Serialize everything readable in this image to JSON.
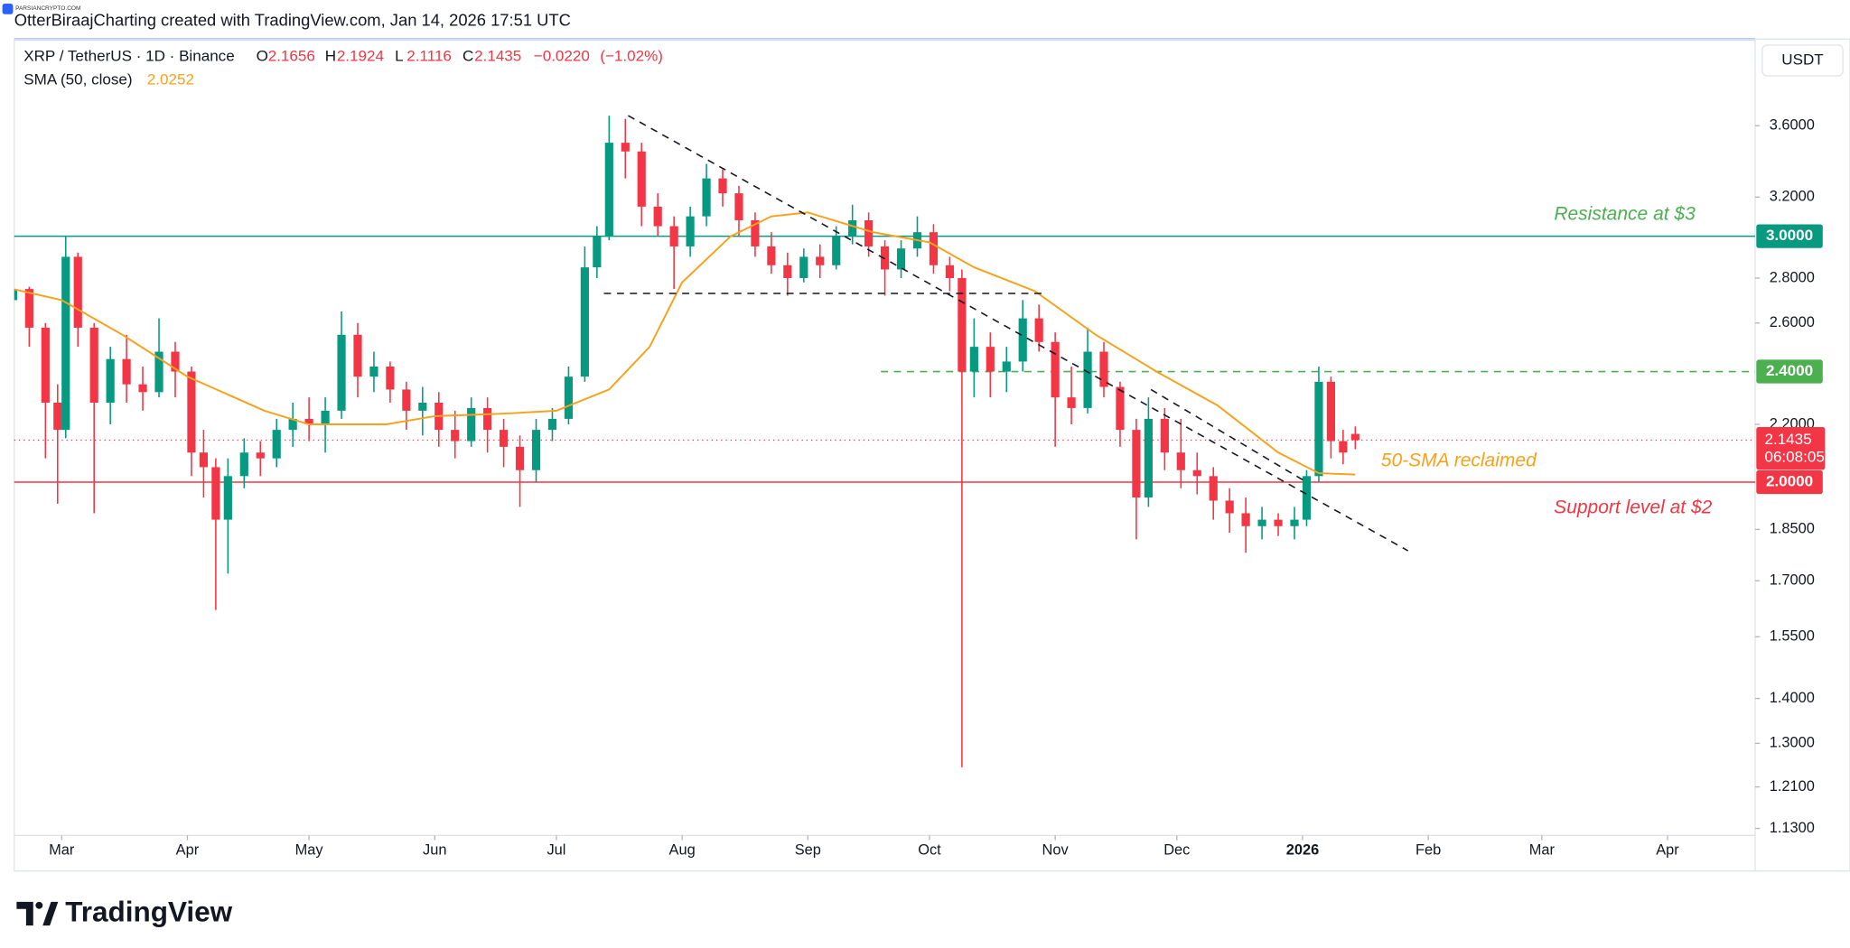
{
  "chart_data": {
    "type": "candlestick",
    "watermark": "PARSIANCRYPTO.COM",
    "caption": "OtterBiraajCharting created with TradingView.com, Jan 14, 2026 17:51 UTC",
    "title": "XRP / TetherUS · 1D · Binance",
    "legend_letters": [
      "O",
      "H",
      "L",
      "C"
    ],
    "change": {
      "value": -0.022,
      "label": "−0.0220"
    },
    "change_pct": {
      "value": -1.02,
      "label": "(−1.02%)"
    },
    "currency": "USDT",
    "countdown": "06:08:05",
    "brand": "TradingView",
    "log_scale": true,
    "grid": false,
    "up_color": "#089981",
    "down_color": "#f23645",
    "x": [
      -12,
      -8,
      -4,
      -1,
      1,
      4,
      8,
      12,
      16,
      20,
      24,
      28,
      32,
      35,
      38,
      41,
      45,
      49,
      53,
      57,
      61,
      65,
      69,
      73,
      77,
      81,
      85,
      89,
      93,
      97,
      101,
      105,
      109,
      113,
      117,
      121,
      125,
      129,
      132,
      135,
      139,
      143,
      147,
      151,
      155,
      159,
      163,
      167,
      171,
      175,
      179,
      183,
      187,
      191,
      195,
      199,
      203,
      207,
      211,
      215,
      219,
      222,
      225,
      229,
      233,
      237,
      241,
      245,
      249,
      253,
      257,
      261,
      265,
      268,
      272,
      276,
      280,
      284,
      288,
      292,
      296,
      300,
      304,
      307,
      310,
      313,
      316,
      319
    ],
    "open": [
      2.7,
      2.75,
      2.58,
      2.28,
      2.18,
      2.9,
      2.58,
      2.28,
      2.45,
      2.35,
      2.32,
      2.48,
      2.4,
      2.1,
      2.05,
      1.88,
      2.02,
      2.1,
      2.08,
      2.18,
      2.22,
      2.2,
      2.25,
      2.55,
      2.38,
      2.42,
      2.33,
      2.25,
      2.28,
      2.18,
      2.14,
      2.26,
      2.18,
      2.12,
      2.04,
      2.18,
      2.22,
      2.38,
      2.85,
      3.0,
      3.5,
      3.45,
      3.15,
      3.05,
      2.95,
      3.1,
      3.3,
      3.22,
      3.08,
      2.95,
      2.86,
      2.8,
      2.9,
      2.86,
      3.0,
      3.08,
      2.95,
      2.84,
      2.94,
      3.02,
      2.86,
      2.8,
      2.4,
      2.5,
      2.4,
      2.44,
      2.62,
      2.52,
      2.3,
      2.26,
      2.48,
      2.34,
      2.18,
      1.95,
      2.22,
      2.1,
      2.04,
      2.02,
      1.94,
      1.9,
      1.86,
      1.88,
      1.86,
      1.88,
      2.02,
      2.36,
      2.14,
      2.1656
    ],
    "high": [
      2.78,
      2.76,
      2.6,
      2.35,
      3.0,
      2.92,
      2.6,
      2.5,
      2.55,
      2.42,
      2.62,
      2.52,
      2.42,
      2.18,
      2.08,
      2.08,
      2.15,
      2.14,
      2.22,
      2.28,
      2.3,
      2.3,
      2.65,
      2.6,
      2.48,
      2.44,
      2.36,
      2.34,
      2.32,
      2.25,
      2.3,
      2.3,
      2.22,
      2.16,
      2.22,
      2.26,
      2.42,
      2.95,
      3.05,
      3.66,
      3.64,
      3.5,
      3.22,
      3.1,
      3.15,
      3.38,
      3.35,
      3.26,
      3.12,
      3.02,
      2.92,
      2.94,
      2.96,
      3.05,
      3.16,
      3.12,
      2.98,
      2.98,
      3.1,
      3.06,
      2.9,
      2.84,
      2.62,
      2.56,
      2.5,
      2.7,
      2.68,
      2.56,
      2.42,
      2.58,
      2.52,
      2.36,
      2.22,
      2.3,
      2.26,
      2.22,
      2.1,
      2.05,
      1.98,
      1.95,
      1.92,
      1.9,
      1.92,
      2.04,
      2.42,
      2.38,
      2.18,
      2.1924
    ],
    "low": [
      2.62,
      2.5,
      2.08,
      1.93,
      2.15,
      2.5,
      1.9,
      2.2,
      2.28,
      2.25,
      2.3,
      2.3,
      2.02,
      1.95,
      1.62,
      1.72,
      1.98,
      2.02,
      2.05,
      2.12,
      2.14,
      2.1,
      2.22,
      2.3,
      2.32,
      2.28,
      2.18,
      2.16,
      2.12,
      2.08,
      2.12,
      2.1,
      2.05,
      1.92,
      2.0,
      2.14,
      2.2,
      2.36,
      2.8,
      2.98,
      3.3,
      3.05,
      3.0,
      2.75,
      2.9,
      3.05,
      3.15,
      3.0,
      2.9,
      2.82,
      2.72,
      2.78,
      2.8,
      2.84,
      2.96,
      2.9,
      2.72,
      2.8,
      2.9,
      2.82,
      2.74,
      1.25,
      2.3,
      2.3,
      2.32,
      2.4,
      2.48,
      2.12,
      2.2,
      2.24,
      2.3,
      2.12,
      1.82,
      1.92,
      2.04,
      1.98,
      1.96,
      1.88,
      1.84,
      1.78,
      1.82,
      1.83,
      1.82,
      1.86,
      2.0,
      2.08,
      2.06,
      2.1116
    ],
    "close": [
      2.75,
      2.58,
      2.28,
      2.18,
      2.9,
      2.58,
      2.28,
      2.45,
      2.35,
      2.32,
      2.48,
      2.4,
      2.1,
      2.05,
      1.88,
      2.02,
      2.1,
      2.08,
      2.18,
      2.22,
      2.2,
      2.25,
      2.55,
      2.38,
      2.42,
      2.33,
      2.25,
      2.28,
      2.18,
      2.14,
      2.26,
      2.18,
      2.12,
      2.04,
      2.18,
      2.22,
      2.38,
      2.85,
      3.0,
      3.5,
      3.45,
      3.15,
      3.05,
      2.95,
      3.1,
      3.3,
      3.22,
      3.08,
      2.95,
      2.86,
      2.8,
      2.9,
      2.86,
      3.0,
      3.08,
      2.95,
      2.84,
      2.94,
      3.02,
      2.86,
      2.8,
      2.4,
      2.5,
      2.4,
      2.44,
      2.62,
      2.52,
      2.3,
      2.26,
      2.48,
      2.34,
      2.18,
      1.95,
      2.22,
      2.1,
      2.04,
      2.02,
      1.94,
      1.9,
      1.86,
      1.88,
      1.86,
      1.88,
      2.02,
      2.36,
      2.14,
      2.1,
      2.1435
    ],
    "sma": {
      "name": "SMA (50, close)",
      "color": "#f7a21b",
      "x": [
        -12,
        0,
        15,
        31,
        50,
        61,
        80,
        92,
        110,
        122,
        135,
        145,
        153,
        165,
        175,
        184,
        200,
        214,
        225,
        240,
        255,
        270,
        285,
        300,
        310,
        319
      ],
      "values": [
        2.75,
        2.7,
        2.55,
        2.38,
        2.25,
        2.2,
        2.2,
        2.23,
        2.24,
        2.25,
        2.33,
        2.5,
        2.78,
        3.0,
        3.1,
        3.12,
        3.02,
        2.97,
        2.85,
        2.74,
        2.55,
        2.4,
        2.27,
        2.1,
        2.03,
        2.0252
      ]
    },
    "xlim": [
      -11.7,
      417.6
    ],
    "xticks": [
      {
        "value": 0,
        "label": "Mar"
      },
      {
        "value": 31,
        "label": "Apr"
      },
      {
        "value": 61,
        "label": "May"
      },
      {
        "value": 92,
        "label": "Jun"
      },
      {
        "value": 122,
        "label": "Jul"
      },
      {
        "value": 153,
        "label": "Aug"
      },
      {
        "value": 184,
        "label": "Sep"
      },
      {
        "value": 214,
        "label": "Oct"
      },
      {
        "value": 245,
        "label": "Nov"
      },
      {
        "value": 275,
        "label": "Dec"
      },
      {
        "value": 306,
        "label": "2026"
      },
      {
        "value": 337,
        "label": "Feb"
      },
      {
        "value": 365,
        "label": "Mar"
      },
      {
        "value": 396,
        "label": "Apr"
      }
    ],
    "ylim": [
      1.117,
      4.136
    ],
    "yticks": [
      {
        "value": 3.6,
        "label": "3.6000"
      },
      {
        "value": 3.2,
        "label": "3.2000"
      },
      {
        "value": 2.8,
        "label": "2.8000"
      },
      {
        "value": 2.6,
        "label": "2.6000"
      },
      {
        "value": 2.2,
        "label": "2.2000"
      },
      {
        "value": 1.85,
        "label": "1.8500"
      },
      {
        "value": 1.7,
        "label": "1.7000"
      },
      {
        "value": 1.55,
        "label": "1.5500"
      },
      {
        "value": 1.4,
        "label": "1.4000"
      },
      {
        "value": 1.3,
        "label": "1.3000"
      },
      {
        "value": 1.21,
        "label": "1.2100"
      },
      {
        "value": 1.13,
        "label": "1.1300"
      }
    ],
    "levels": [
      {
        "price": {
          "value": 3,
          "label": "3.0000"
        },
        "color": "#089981",
        "style": "solid",
        "text": "Resistance at $3",
        "text_color": "#4caf50"
      },
      {
        "price": {
          "value": 2.4,
          "label": "2.4000"
        },
        "color": "#4caf50",
        "style": "dashed"
      },
      {
        "price": {
          "value": 2,
          "label": "2.0000"
        },
        "color": "#f23645",
        "style": "solid",
        "text": "Support level at $2",
        "text_color": "#f23645"
      }
    ],
    "sma_note": "50-SMA reclaimed",
    "trendlines": [
      {
        "x": [
          139.7,
          332
        ],
        "values": [
          3.66,
          1.786
        ]
      },
      {
        "x": [
          133.7,
          242
        ],
        "values": [
          2.73,
          2.73
        ]
      },
      {
        "x": [
          268.6,
          307
        ],
        "values": [
          2.33,
          2.0
        ]
      }
    ]
  }
}
